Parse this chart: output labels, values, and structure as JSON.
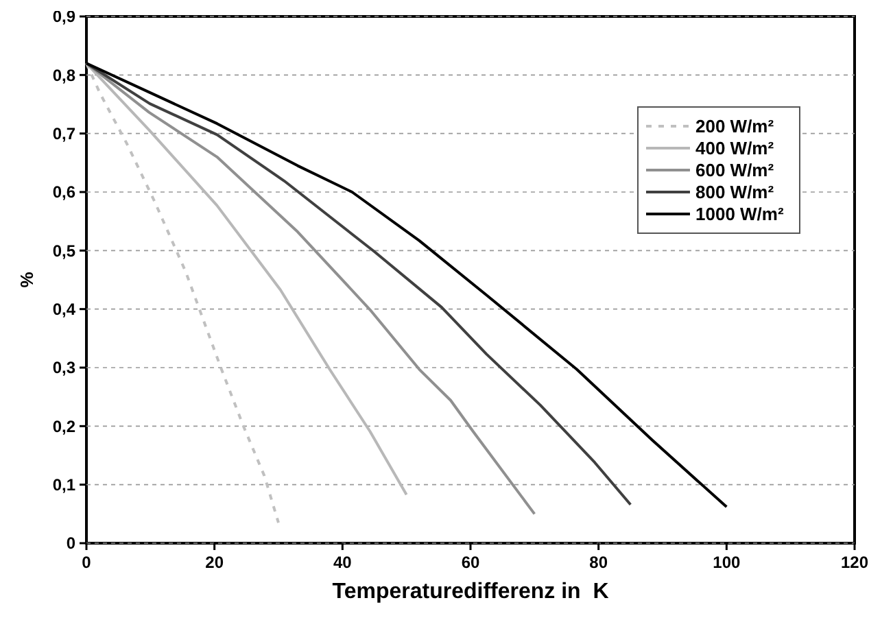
{
  "chart_data": {
    "type": "line",
    "xlabel": "Temperaturedifferenz in  K",
    "ylabel": "%",
    "xlim": [
      0,
      120
    ],
    "xticks": [
      0,
      20,
      40,
      60,
      80,
      100,
      120
    ],
    "ylim": [
      0,
      0.9
    ],
    "yticks": [
      {
        "value": 0,
        "label": "0"
      },
      {
        "value": 0.1,
        "label": "0,1"
      },
      {
        "value": 0.2,
        "label": "0,2"
      },
      {
        "value": 0.3,
        "label": "0,3"
      },
      {
        "value": 0.4,
        "label": "0,4"
      },
      {
        "value": 0.5,
        "label": "0,5"
      },
      {
        "value": 0.6,
        "label": "0,6"
      },
      {
        "value": 0.7,
        "label": "0,7"
      },
      {
        "value": 0.8,
        "label": "0,8"
      },
      {
        "value": 0.9,
        "label": "0,9"
      }
    ],
    "grid": "y",
    "legend": "top right",
    "marker": "none",
    "series": [
      {
        "name": "200 W/m²",
        "color": "#c0c0c0",
        "line_style": "dashed",
        "x": [
          0,
          2.2,
          6.3,
          10.6,
          15.5,
          21.1,
          24.6,
          27.8,
          30
        ],
        "values": [
          0.82,
          0.767,
          0.683,
          0.585,
          0.464,
          0.297,
          0.198,
          0.115,
          0.035
        ]
      },
      {
        "name": "400 W/m²",
        "color": "#b8b8b8",
        "line_style": "solid",
        "x": [
          0,
          9.8,
          20.4,
          30.3,
          38,
          44.3,
          50
        ],
        "values": [
          0.82,
          0.706,
          0.577,
          0.433,
          0.297,
          0.191,
          0.083
        ]
      },
      {
        "name": "600 W/m²",
        "color": "#909090",
        "line_style": "solid",
        "x": [
          0,
          9.8,
          20.4,
          33,
          44.3,
          52,
          56.9,
          60.4,
          70
        ],
        "values": [
          0.82,
          0.736,
          0.66,
          0.532,
          0.399,
          0.297,
          0.244,
          0.191,
          0.05
        ]
      },
      {
        "name": "800 W/m²",
        "color": "#404040",
        "line_style": "solid",
        "x": [
          0,
          9.9,
          20.4,
          30.9,
          45,
          55.5,
          62.5,
          70.9,
          79.4,
          85
        ],
        "values": [
          0.82,
          0.751,
          0.698,
          0.619,
          0.498,
          0.403,
          0.323,
          0.236,
          0.138,
          0.066
        ]
      },
      {
        "name": "1000 W/m²",
        "color": "#000000",
        "line_style": "solid",
        "x": [
          0,
          9.9,
          20.4,
          33,
          41.5,
          52,
          62.5,
          76.6,
          88.4,
          100
        ],
        "values": [
          0.82,
          0.77,
          0.717,
          0.645,
          0.6,
          0.517,
          0.424,
          0.297,
          0.176,
          0.062
        ]
      }
    ]
  }
}
